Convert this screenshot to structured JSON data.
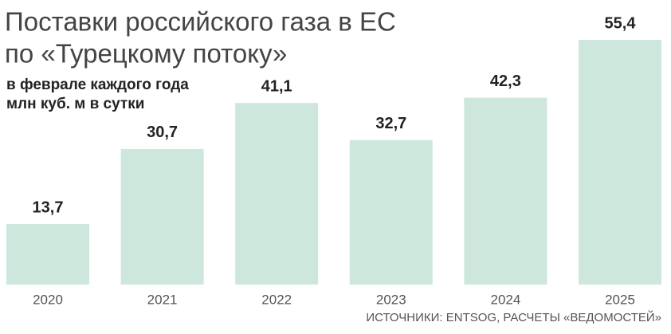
{
  "chart_data": {
    "type": "bar",
    "title": [
      "Поставки российского газа в ЕС",
      "по «Турецкому потоку»"
    ],
    "subtitle": [
      "в феврале каждого года",
      "млн куб. м в сутки"
    ],
    "source": "ИСТОЧНИКИ: ENTSOG, РАСЧЕТЫ «ВЕДОМОСТЕЙ»",
    "categories": [
      "2020",
      "2021",
      "2022",
      "2023",
      "2024",
      "2025"
    ],
    "values": [
      13.7,
      30.7,
      41.1,
      32.7,
      42.3,
      55.4
    ],
    "value_labels": [
      "13,7",
      "30,7",
      "41,1",
      "32,7",
      "42,3",
      "55,4"
    ],
    "color": "#cde7dd"
  }
}
